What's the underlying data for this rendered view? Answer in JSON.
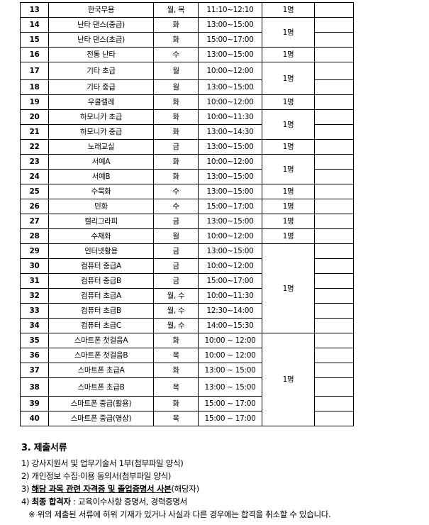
{
  "table": {
    "rows": [
      {
        "no": "13",
        "name": "한국무용",
        "day": "월, 목",
        "time": "11:10~12:10"
      },
      {
        "no": "14",
        "name": "난타 댄스(중급)",
        "day": "화",
        "time": "13:00~15:00"
      },
      {
        "no": "15",
        "name": "난타 댄스(초급)",
        "day": "화",
        "time": "15:00~17:00"
      },
      {
        "no": "16",
        "name": "전통 난타",
        "day": "수",
        "time": "13:00~15:00"
      },
      {
        "no": "17",
        "name": "기타 초급",
        "day": "월",
        "time": "10:00~12:00"
      },
      {
        "no": "18",
        "name": "기타 중급",
        "day": "월",
        "time": "13:00~15:00"
      },
      {
        "no": "19",
        "name": "우쿨렐레",
        "day": "화",
        "time": "10:00~12:00"
      },
      {
        "no": "20",
        "name": "하모니카 초급",
        "day": "화",
        "time": "10:00~11:30"
      },
      {
        "no": "21",
        "name": "하모니카 중급",
        "day": "화",
        "time": "13:00~14:30"
      },
      {
        "no": "22",
        "name": "노래교실",
        "day": "금",
        "time": "13:00~15:00"
      },
      {
        "no": "23",
        "name": "서예A",
        "day": "화",
        "time": "10:00~12:00"
      },
      {
        "no": "24",
        "name": "서예B",
        "day": "화",
        "time": "13:00~15:00"
      },
      {
        "no": "25",
        "name": "수묵화",
        "day": "수",
        "time": "13:00~15:00"
      },
      {
        "no": "26",
        "name": "민화",
        "day": "수",
        "time": "15:00~17:00"
      },
      {
        "no": "27",
        "name": "캘리그라피",
        "day": "금",
        "time": "13:00~15:00"
      },
      {
        "no": "28",
        "name": "수채화",
        "day": "월",
        "time": "10:00~12:00"
      },
      {
        "no": "29",
        "name": "인터넷활용",
        "day": "금",
        "time": "13:00~15:00"
      },
      {
        "no": "30",
        "name": "컴퓨터 중급A",
        "day": "금",
        "time": "10:00~12:00"
      },
      {
        "no": "31",
        "name": "컴퓨터 중급B",
        "day": "금",
        "time": "15:00~17:00"
      },
      {
        "no": "32",
        "name": "컴퓨터 초급A",
        "day": "월, 수",
        "time": "10:00~11:30"
      },
      {
        "no": "33",
        "name": "컴퓨터 초급B",
        "day": "월, 수",
        "time": "12:30~14:00"
      },
      {
        "no": "34",
        "name": "컴퓨터 초급C",
        "day": "월, 수",
        "time": "14:00~15:30"
      },
      {
        "no": "35",
        "name": "스마트폰 첫걸음A",
        "day": "화",
        "time": "10:00 ~ 12:00"
      },
      {
        "no": "36",
        "name": "스마트폰 첫걸음B",
        "day": "목",
        "time": "10:00 ~ 12:00"
      },
      {
        "no": "37",
        "name": "스마트폰 초급A",
        "day": "화",
        "time": "13:00 ~ 15:00"
      },
      {
        "no": "38",
        "name": "스마트폰 초급B",
        "day": "목",
        "time": "13:00 ~ 15:00"
      },
      {
        "no": "39",
        "name": "스마트폰 중급(활용)",
        "day": "화",
        "time": "15:00 ~ 17:00"
      },
      {
        "no": "40",
        "name": "스마트폰 중급(영상)",
        "day": "목",
        "time": "15:00 ~ 17:00"
      }
    ],
    "headcount_groups": [
      {
        "count": "1명",
        "span": 1
      },
      {
        "count": "1명",
        "span": 2
      },
      {
        "count": "1명",
        "span": 1
      },
      {
        "count": "1명",
        "span": 2
      },
      {
        "count": "1명",
        "span": 1
      },
      {
        "count": "1명",
        "span": 2
      },
      {
        "count": "1명",
        "span": 1
      },
      {
        "count": "1명",
        "span": 2
      },
      {
        "count": "1명",
        "span": 1
      },
      {
        "count": "1명",
        "span": 1
      },
      {
        "count": "1명",
        "span": 1
      },
      {
        "count": "1명",
        "span": 1
      },
      {
        "count": "1명",
        "span": 6
      },
      {
        "count": "1명",
        "span": 6
      }
    ]
  },
  "documents": {
    "title": "3. 제출서류",
    "item1": "1) 강사지원서 및 업무기술서 1부(첨부파일 양식)",
    "item2": "2) 개인정보 수집·이용 동의서(첨부파일 양식)",
    "item3_prefix": "3) ",
    "item3_bold": "해당 과목 관련 자격증 및 졸업증명서 사본",
    "item3_suffix": "(해당자)",
    "item4_prefix": "4) ",
    "item4_bold": "최종 합격자",
    "item4_suffix": " : 교육이수사항 증명서, 경력증명서",
    "note": "※ 위의 제출된 서류에 허위 기재가 있거나 사실과 다른 경우에는 합격을 취소할 수 있습니다."
  }
}
